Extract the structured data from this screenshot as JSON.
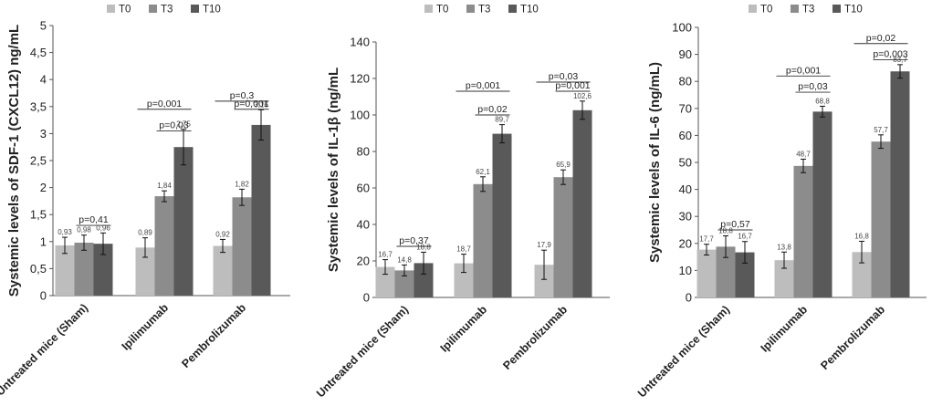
{
  "colors": {
    "T0": "#bdbdbd",
    "T3": "#8c8c8c",
    "T10": "#595959",
    "axis": "#555555",
    "text": "#222222",
    "line": "#333333"
  },
  "chart_data": [
    {
      "type": "bar",
      "title": "",
      "ylabel": "Systemic levels of SDF-1 (CXCL12) ng/mL",
      "xlabel": "",
      "ylim": [
        0,
        5
      ],
      "yticks": [
        "0",
        "0,5",
        "1",
        "1,5",
        "2",
        "2,5",
        "3",
        "3,5",
        "4",
        "4,5",
        "5"
      ],
      "tick_step": 0.5,
      "categories": [
        "Untreated mice (Sham)",
        "Ipilimumab",
        "Pembrolizumab"
      ],
      "series": [
        {
          "name": "T0",
          "values": [
            0.93,
            0.89,
            0.92
          ],
          "labels": [
            "0,93",
            "0,89",
            "0,92"
          ],
          "errors": [
            0.15,
            0.18,
            0.12
          ]
        },
        {
          "name": "T3",
          "values": [
            0.98,
            1.84,
            1.82
          ],
          "labels": [
            "0,98",
            "1,84",
            "1,82"
          ],
          "errors": [
            0.14,
            0.1,
            0.15
          ]
        },
        {
          "name": "T10",
          "values": [
            0.96,
            2.75,
            3.16
          ],
          "labels": [
            "0,96",
            "2,75",
            "3,16"
          ],
          "errors": [
            0.2,
            0.33,
            0.28
          ]
        }
      ],
      "annotations": [
        {
          "text": "p=0,41",
          "category": 0,
          "from": 1,
          "to": 2,
          "y": 1.3
        },
        {
          "text": "p=0,001",
          "category": 1,
          "from": 0,
          "to": 2,
          "y": 3.45
        },
        {
          "text": "p=0,03",
          "category": 1,
          "from": 1,
          "to": 2,
          "y": 3.05
        },
        {
          "text": "p=0,3",
          "category": 2,
          "from": 0,
          "to": 2,
          "y": 3.6
        },
        {
          "text": "p=0,001",
          "category": 2,
          "from": 1,
          "to": 2,
          "y": 3.45
        }
      ]
    },
    {
      "type": "bar",
      "title": "",
      "ylabel": "Systemic levels of IL-1β (ng/mL",
      "xlabel": "",
      "ylim": [
        0,
        140
      ],
      "yticks": [
        "0",
        "20",
        "40",
        "60",
        "80",
        "100",
        "120",
        "140"
      ],
      "tick_step": 20,
      "categories": [
        "Untreated mice (Sham)",
        "Ipilimumab",
        "Pembrolizumab"
      ],
      "series": [
        {
          "name": "T0",
          "values": [
            16.7,
            18.7,
            17.9
          ],
          "labels": [
            "16,7",
            "18,7",
            "17,9"
          ],
          "errors": [
            4,
            5,
            8
          ]
        },
        {
          "name": "T3",
          "values": [
            14.8,
            62.1,
            65.9
          ],
          "labels": [
            "14,8",
            "62,1",
            "65,9"
          ],
          "errors": [
            3,
            4,
            4
          ]
        },
        {
          "name": "T10",
          "values": [
            18.8,
            89.7,
            102.6
          ],
          "labels": [
            "18,8",
            "89,7",
            "102,6"
          ],
          "errors": [
            6,
            5,
            5
          ]
        }
      ],
      "annotations": [
        {
          "text": "p=0,37",
          "category": 0,
          "from": 1,
          "to": 2,
          "y": 28
        },
        {
          "text": "p=0,001",
          "category": 1,
          "from": 0,
          "to": 2,
          "y": 113
        },
        {
          "text": "p=0,02",
          "category": 1,
          "from": 1,
          "to": 2,
          "y": 100
        },
        {
          "text": "p=0,03",
          "category": 2,
          "from": 0,
          "to": 2,
          "y": 118
        },
        {
          "text": "p=0,001",
          "category": 2,
          "from": 1,
          "to": 2,
          "y": 113
        }
      ]
    },
    {
      "type": "bar",
      "title": "",
      "ylabel": "Systemic levels of IL-6 (ng/mL)",
      "xlabel": "",
      "ylim": [
        0,
        100
      ],
      "yticks": [
        "0",
        "10",
        "20",
        "30",
        "40",
        "50",
        "60",
        "70",
        "80",
        "90",
        "100"
      ],
      "tick_step": 10,
      "categories": [
        "Untreated mice (Sham)",
        "Ipilimumab",
        "Pembrolizumab"
      ],
      "series": [
        {
          "name": "T0",
          "values": [
            17.7,
            13.8,
            16.8
          ],
          "labels": [
            "17,7",
            "13,8",
            "16,8"
          ],
          "errors": [
            2,
            3,
            4
          ]
        },
        {
          "name": "T3",
          "values": [
            18.8,
            48.7,
            57.7
          ],
          "labels": [
            "18,8",
            "48,7",
            "57,7"
          ],
          "errors": [
            4,
            2.5,
            2.5
          ]
        },
        {
          "name": "T10",
          "values": [
            16.7,
            68.8,
            83.7
          ],
          "labels": [
            "16,7",
            "68,8",
            "83,7"
          ],
          "errors": [
            4,
            2,
            2.5
          ]
        }
      ],
      "annotations": [
        {
          "text": "p=0,57",
          "category": 0,
          "from": 1,
          "to": 2,
          "y": 25
        },
        {
          "text": "p=0,001",
          "category": 1,
          "from": 0,
          "to": 2,
          "y": 82
        },
        {
          "text": "p=0,03",
          "category": 1,
          "from": 1,
          "to": 2,
          "y": 76
        },
        {
          "text": "p=0,02",
          "category": 2,
          "from": 0,
          "to": 2,
          "y": 94
        },
        {
          "text": "p=0,003",
          "category": 2,
          "from": 1,
          "to": 2,
          "y": 88
        }
      ]
    }
  ]
}
